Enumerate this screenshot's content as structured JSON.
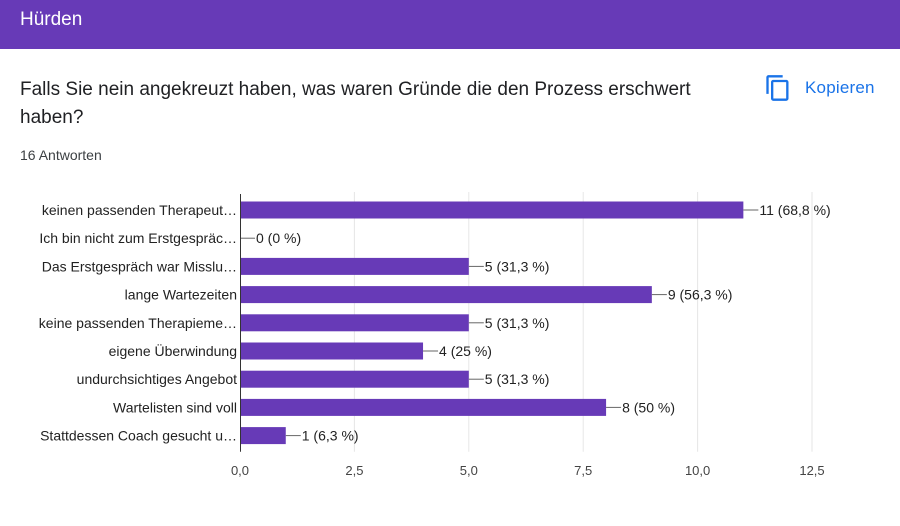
{
  "header": {
    "title": "Hürden"
  },
  "question": {
    "text": "Falls Sie nein angekreuzt haben, was waren Gründe die den Prozess erschwert haben?",
    "response_count": "16 Antworten"
  },
  "actions": {
    "copy_label": "Kopieren",
    "copy_icon": "copy-icon"
  },
  "colors": {
    "accent": "#673ab7",
    "link": "#1a73e8"
  },
  "chart_data": {
    "type": "bar",
    "orientation": "horizontal",
    "categories": [
      "keinen passenden Therapeut…",
      "Ich bin nicht zum Erstgespräc…",
      "Das Erstgespräch war Misslu…",
      "lange Wartezeiten",
      "keine passenden Therapieme…",
      "eigene Überwindung",
      "undurchsichtiges Angebot",
      "Wartelisten sind voll",
      "Stattdessen Coach gesucht u…"
    ],
    "values": [
      11,
      0,
      5,
      9,
      5,
      4,
      5,
      8,
      1
    ],
    "data_labels": [
      "11 (68,8 %)",
      "0 (0 %)",
      "5 (31,3 %)",
      "9 (56,3 %)",
      "5 (31,3 %)",
      "4 (25 %)",
      "5 (31,3 %)",
      "8 (50 %)",
      "1 (6,3 %)"
    ],
    "xlim": [
      0,
      12.5
    ],
    "xticks": [
      "0,0",
      "2,5",
      "5,0",
      "7,5",
      "10,0",
      "12,5"
    ],
    "xtick_values": [
      0,
      2.5,
      5,
      7.5,
      10,
      12.5
    ],
    "grid": true,
    "bar_color": "#673ab7"
  }
}
